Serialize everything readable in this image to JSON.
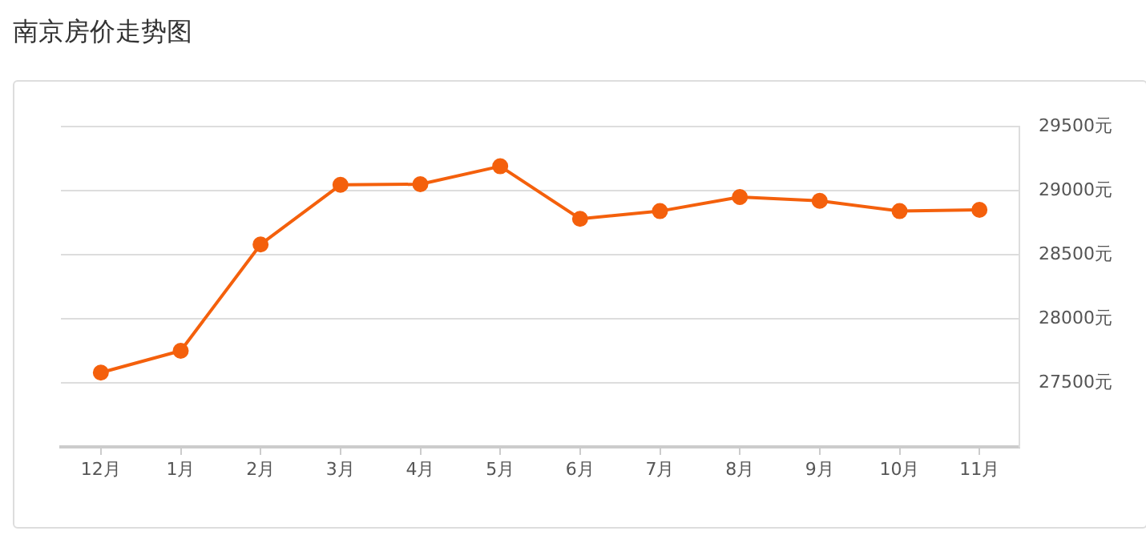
{
  "chart_data": {
    "type": "line",
    "title": "南京房价走势图",
    "categories": [
      "12月",
      "1月",
      "2月",
      "3月",
      "4月",
      "5月",
      "6月",
      "7月",
      "8月",
      "9月",
      "10月",
      "11月"
    ],
    "series": [
      {
        "color": "#f4600c",
        "values": [
          27580,
          27750,
          28580,
          29045,
          29050,
          29190,
          28780,
          28840,
          28950,
          28920,
          28840,
          28850
        ]
      }
    ],
    "ylim": [
      27000,
      29500
    ],
    "yticks": [
      {
        "value": 27000,
        "label": null
      },
      {
        "value": 27500,
        "label": "27500元"
      },
      {
        "value": 28000,
        "label": "28000元"
      },
      {
        "value": 28500,
        "label": "28500元"
      },
      {
        "value": 29000,
        "label": "29000元"
      },
      {
        "value": 29500,
        "label": "29500元"
      }
    ],
    "grid": "y",
    "marker": "circle",
    "line_style": "solid",
    "legend": false
  }
}
